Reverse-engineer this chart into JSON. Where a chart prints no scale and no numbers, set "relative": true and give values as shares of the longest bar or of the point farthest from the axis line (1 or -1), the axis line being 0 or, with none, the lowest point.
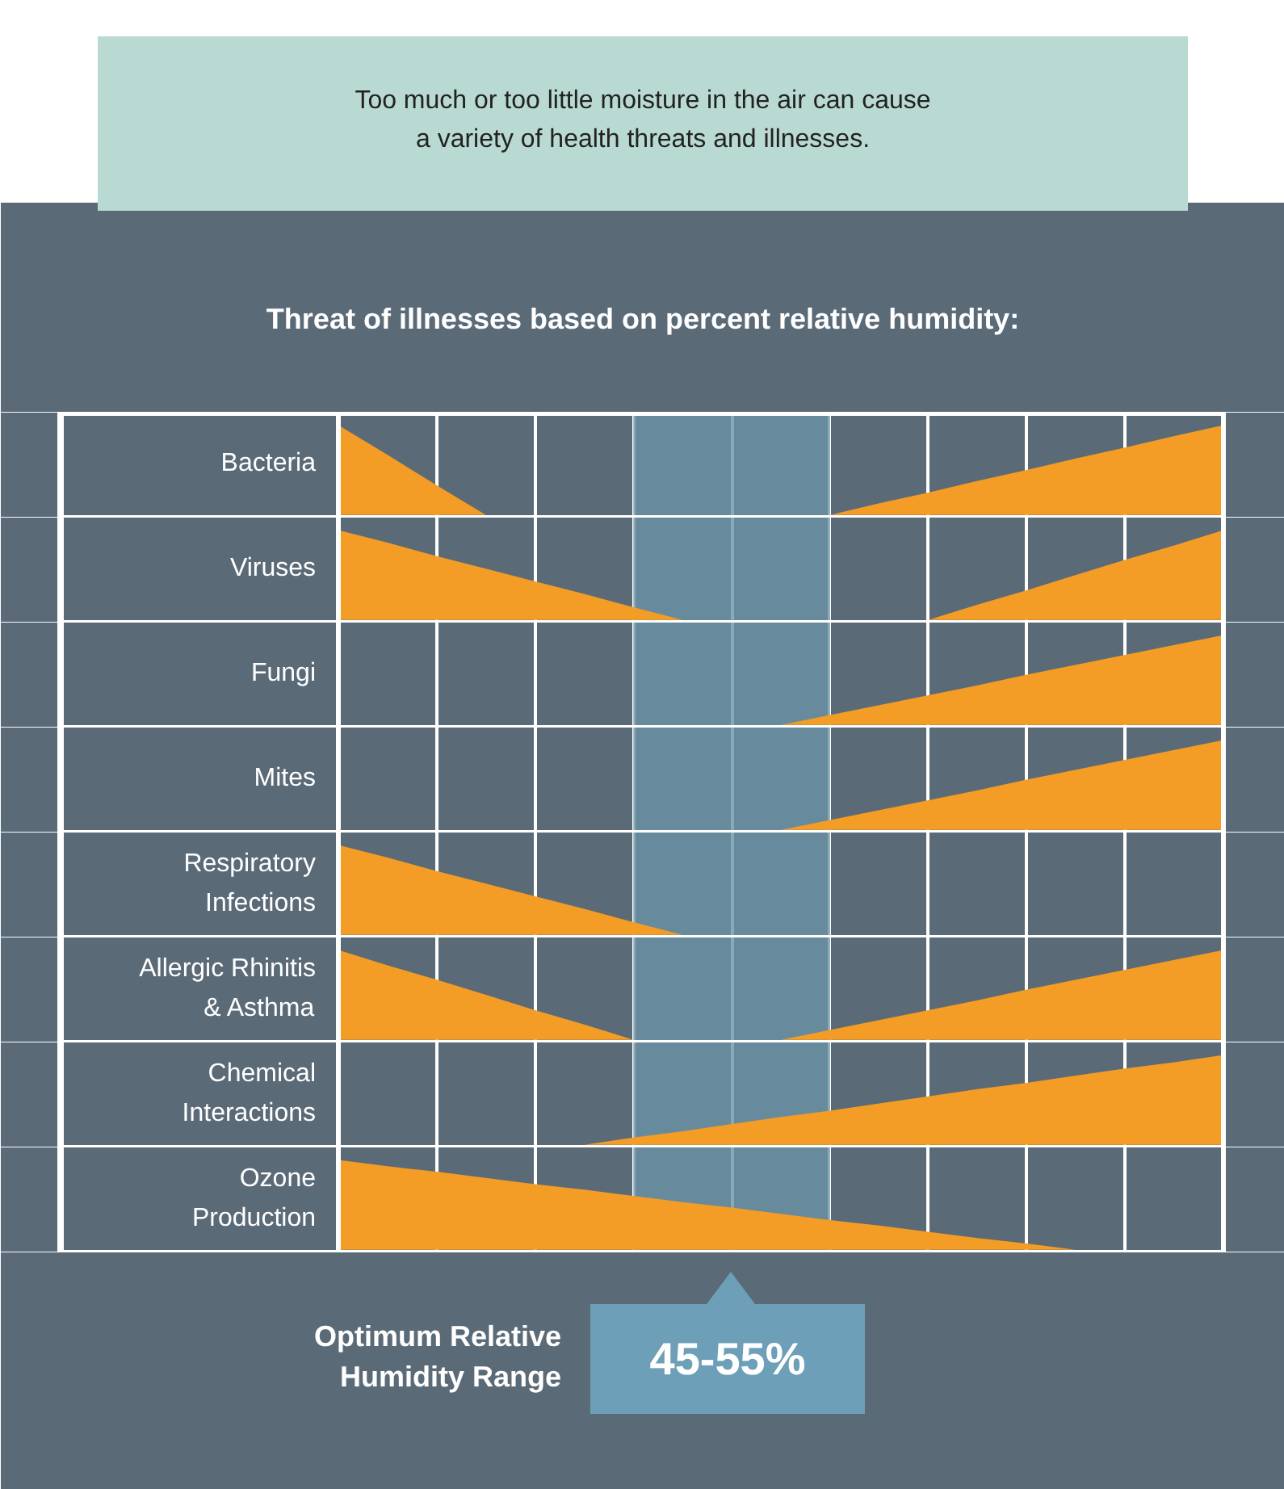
{
  "chart_data": [
    {
      "type": "area",
      "title": "Too much or too little moisture in the air can cause a variety of health threats and illnesses.",
      "subtitle": "Threat of illnesses based on percent relative humidity:",
      "ylabel": "Bacteria",
      "relative": true,
      "categories": [
        null,
        null,
        null,
        null,
        null,
        null,
        null,
        null,
        null,
        null,
        null,
        null,
        null,
        null,
        null,
        null,
        null,
        null,
        null
      ],
      "grid": "x",
      "series": [
        {
          "color": "#f39c26",
          "values": [
            1,
            0.67,
            0.33,
            0,
            null,
            null,
            null,
            null,
            null,
            null,
            null,
            null,
            null,
            null,
            null,
            null,
            null,
            null,
            null
          ]
        },
        {
          "color": "#f39c26",
          "values": [
            null,
            null,
            null,
            null,
            null,
            null,
            null,
            null,
            null,
            null,
            0,
            0.13,
            0.25,
            0.38,
            0.5,
            0.63,
            0.75,
            0.88,
            1
          ]
        }
      ]
    },
    {
      "type": "area",
      "ylabel": "Viruses",
      "relative": true,
      "categories": [
        null,
        null,
        null,
        null,
        null,
        null,
        null,
        null,
        null,
        null,
        null,
        null,
        null,
        null,
        null,
        null,
        null,
        null,
        null
      ],
      "grid": "x",
      "series": [
        {
          "color": "#f39c26",
          "values": [
            1,
            0.86,
            0.71,
            0.57,
            0.43,
            0.29,
            0.14,
            0,
            null,
            null,
            null,
            null,
            null,
            null,
            null,
            null,
            null,
            null,
            null
          ]
        },
        {
          "color": "#f39c26",
          "values": [
            null,
            null,
            null,
            null,
            null,
            null,
            null,
            null,
            null,
            null,
            null,
            null,
            0,
            0.17,
            0.33,
            0.5,
            0.67,
            0.83,
            1
          ]
        }
      ]
    },
    {
      "type": "area",
      "ylabel": "Fungi",
      "relative": true,
      "categories": [
        null,
        null,
        null,
        null,
        null,
        null,
        null,
        null,
        null,
        null,
        null,
        null,
        null,
        null,
        null,
        null,
        null,
        null,
        null
      ],
      "grid": "x",
      "series": [
        {
          "color": "#f39c26",
          "values": [
            null,
            null,
            null,
            null,
            null,
            null,
            null,
            null,
            null,
            0,
            0.11,
            0.22,
            0.33,
            0.44,
            0.56,
            0.67,
            0.78,
            0.89,
            1
          ]
        }
      ]
    },
    {
      "type": "area",
      "ylabel": "Mites",
      "relative": true,
      "categories": [
        null,
        null,
        null,
        null,
        null,
        null,
        null,
        null,
        null,
        null,
        null,
        null,
        null,
        null,
        null,
        null,
        null,
        null,
        null
      ],
      "grid": "x",
      "series": [
        {
          "color": "#f39c26",
          "values": [
            null,
            null,
            null,
            null,
            null,
            null,
            null,
            null,
            null,
            0,
            0.11,
            0.22,
            0.33,
            0.44,
            0.56,
            0.67,
            0.78,
            0.89,
            1
          ]
        }
      ]
    },
    {
      "type": "area",
      "ylabel": "Respiratory Infections",
      "relative": true,
      "categories": [
        null,
        null,
        null,
        null,
        null,
        null,
        null,
        null,
        null,
        null,
        null,
        null,
        null,
        null,
        null,
        null,
        null,
        null,
        null
      ],
      "grid": "x",
      "series": [
        {
          "color": "#f39c26",
          "values": [
            1,
            0.86,
            0.71,
            0.57,
            0.43,
            0.29,
            0.14,
            0,
            null,
            null,
            null,
            null,
            null,
            null,
            null,
            null,
            null,
            null,
            null
          ]
        }
      ]
    },
    {
      "type": "area",
      "ylabel": "Allergic Rhinitis & Asthma",
      "relative": true,
      "categories": [
        null,
        null,
        null,
        null,
        null,
        null,
        null,
        null,
        null,
        null,
        null,
        null,
        null,
        null,
        null,
        null,
        null,
        null,
        null
      ],
      "grid": "x",
      "series": [
        {
          "color": "#f39c26",
          "values": [
            1,
            0.83,
            0.67,
            0.5,
            0.33,
            0.17,
            0,
            null,
            null,
            null,
            null,
            null,
            null,
            null,
            null,
            null,
            null,
            null,
            null
          ]
        },
        {
          "color": "#f39c26",
          "values": [
            null,
            null,
            null,
            null,
            null,
            null,
            null,
            null,
            null,
            0,
            0.11,
            0.22,
            0.33,
            0.44,
            0.56,
            0.67,
            0.78,
            0.89,
            1
          ]
        }
      ]
    },
    {
      "type": "area",
      "ylabel": "Chemical Interactions",
      "relative": true,
      "categories": [
        null,
        null,
        null,
        null,
        null,
        null,
        null,
        null,
        null,
        null,
        null,
        null,
        null,
        null,
        null,
        null,
        null,
        null,
        null
      ],
      "grid": "x",
      "series": [
        {
          "color": "#f39c26",
          "values": [
            null,
            null,
            null,
            null,
            null,
            0,
            0.08,
            0.15,
            0.23,
            0.31,
            0.38,
            0.46,
            0.54,
            0.62,
            0.69,
            0.77,
            0.85,
            0.92,
            1
          ]
        }
      ]
    },
    {
      "type": "area",
      "ylabel": "Ozone Production",
      "relative": true,
      "categories": [
        null,
        null,
        null,
        null,
        null,
        null,
        null,
        null,
        null,
        null,
        null,
        null,
        null,
        null,
        null,
        null,
        null,
        null,
        null
      ],
      "grid": "x",
      "annotations": [
        "Optimum Relative Humidity Range",
        "45-55%"
      ],
      "series": [
        {
          "color": "#f39c26",
          "values": [
            1,
            0.93,
            0.87,
            0.8,
            0.73,
            0.67,
            0.6,
            0.53,
            0.47,
            0.4,
            0.33,
            0.27,
            0.2,
            0.13,
            0.07,
            0,
            null,
            null,
            null
          ]
        }
      ]
    }
  ]
}
